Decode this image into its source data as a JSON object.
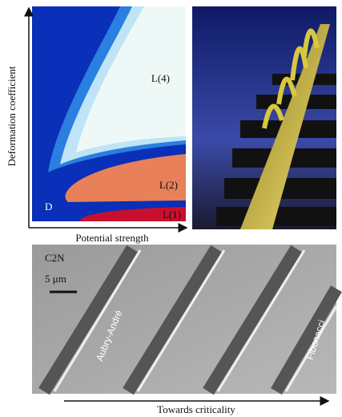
{
  "phase_diagram": {
    "y_axis_label": "Deformation coefficient",
    "x_axis_label": "Potential strength",
    "regions": [
      "L(4)",
      "L(2)",
      "L(1)",
      "D"
    ]
  },
  "micrograph": {
    "sample": "C2N",
    "scale_bar": "5 μm",
    "left_label": "Aubry-André",
    "right_label": "Fibonacci",
    "arrow_label": "Towards criticality"
  }
}
